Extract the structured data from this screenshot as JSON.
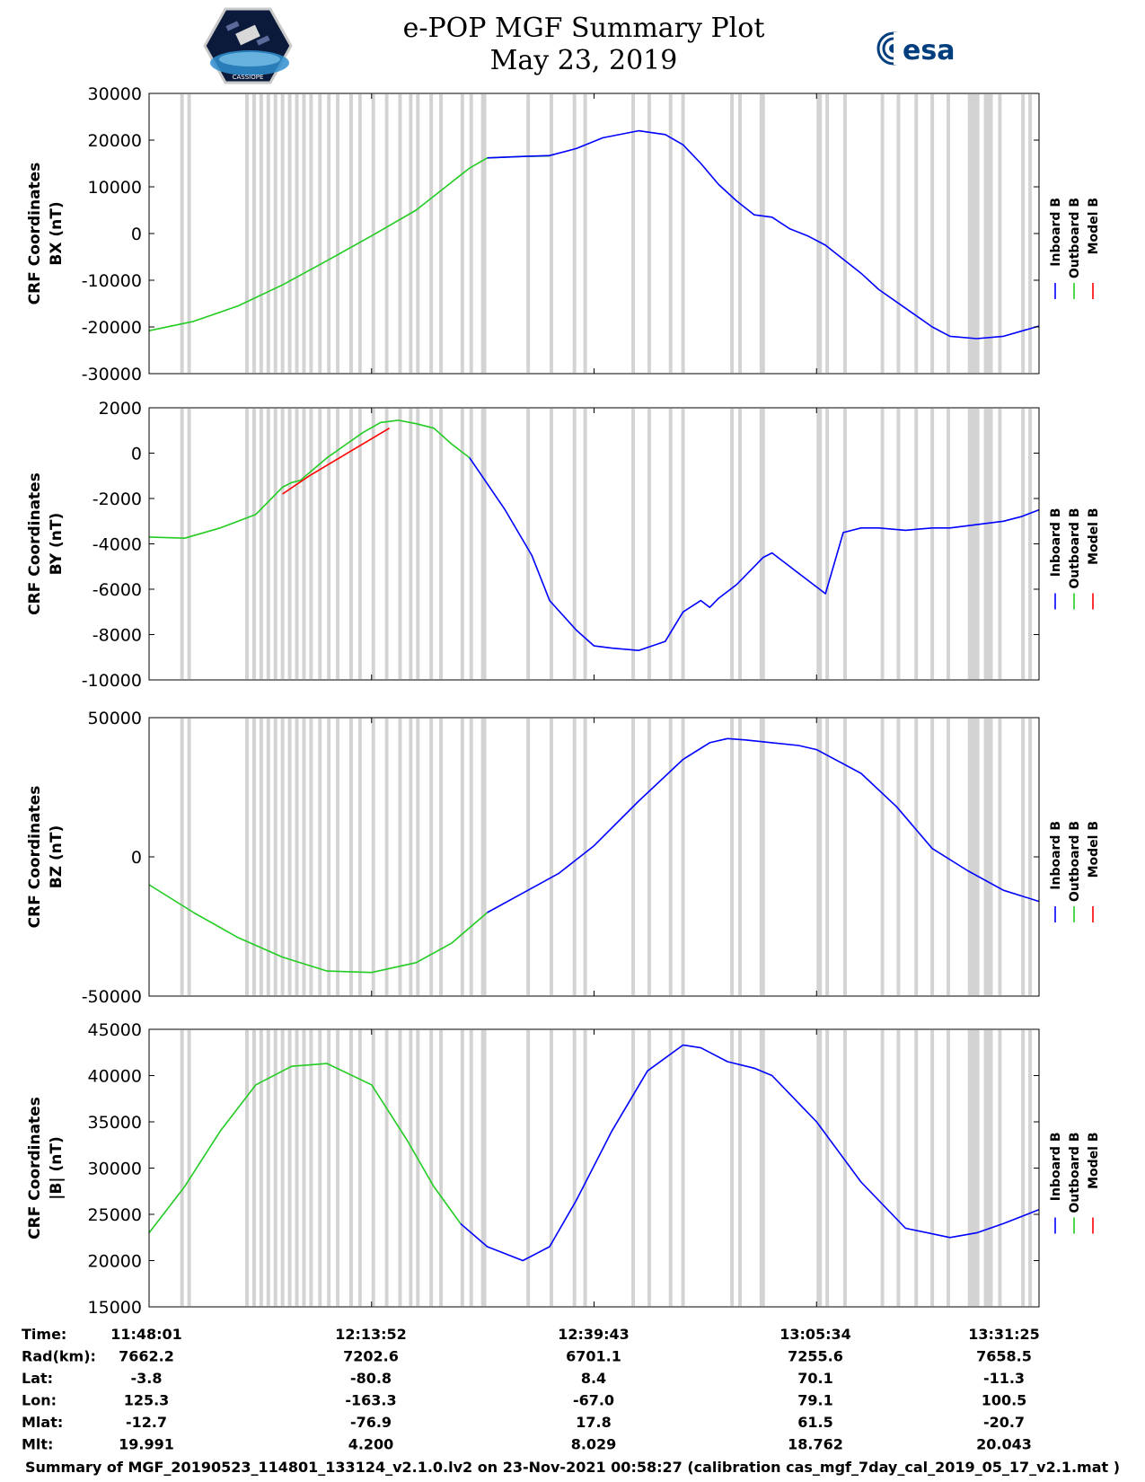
{
  "header": {
    "title_line1": "e-POP MGF Summary Plot",
    "title_line2": "May 23, 2019",
    "logo_left_label": "CASSIOPE",
    "logo_right_label": "esa"
  },
  "legend": {
    "labels": [
      "Inboard B",
      "Outboard B",
      "Model B"
    ],
    "colors": [
      "#0000ff",
      "#22cc22",
      "#ff0000"
    ]
  },
  "colors": {
    "inboard": "#0000ff",
    "outboard": "#22cc22",
    "model": "#ff0000",
    "gap": "#d3d3d3"
  },
  "chart_data": [
    {
      "type": "line",
      "ylabel_line1": "CRF Coordinates",
      "ylabel_line2": "BX (nT)",
      "ylim": [
        -30000,
        30000
      ],
      "yticks": [
        30000,
        20000,
        10000,
        0,
        -10000,
        -20000,
        -30000
      ],
      "xlim": [
        0,
        100
      ],
      "series": [
        {
          "name": "Outboard B",
          "color": "#22cc22",
          "x": [
            0,
            5,
            10,
            15,
            20,
            25,
            30,
            33,
            36,
            38
          ],
          "y": [
            -20800,
            -18800,
            -15500,
            -11000,
            -5800,
            -500,
            5000,
            9500,
            14000,
            16200
          ]
        },
        {
          "name": "Outboard B",
          "color": "#22cc22",
          "x": [
            38,
            42,
            45
          ],
          "y": [
            16200,
            16500,
            16600
          ]
        },
        {
          "name": "Inboard B",
          "color": "#0000ff",
          "x": [
            38,
            42,
            45,
            48,
            51,
            55,
            58,
            60,
            62,
            64,
            66,
            68,
            70,
            72,
            74,
            76,
            78,
            80,
            82,
            85,
            88,
            90,
            93,
            96,
            100
          ],
          "y": [
            16200,
            16500,
            16700,
            18200,
            20500,
            22000,
            21200,
            19000,
            15000,
            10500,
            7000,
            4000,
            3500,
            1000,
            -500,
            -2500,
            -5500,
            -8500,
            -12000,
            -16000,
            -20000,
            -22000,
            -22500,
            -22000,
            -19800
          ]
        }
      ]
    },
    {
      "type": "line",
      "ylabel_line1": "CRF Coordinates",
      "ylabel_line2": "BY (nT)",
      "ylim": [
        -10000,
        2000
      ],
      "yticks": [
        2000,
        0,
        -2000,
        -4000,
        -6000,
        -8000,
        -10000
      ],
      "xlim": [
        0,
        100
      ],
      "series": [
        {
          "name": "Outboard B",
          "color": "#22cc22",
          "x": [
            0,
            4,
            8,
            12,
            15,
            16,
            17,
            20,
            24,
            26,
            28,
            30,
            32,
            34,
            36
          ],
          "y": [
            -3700,
            -3750,
            -3300,
            -2700,
            -1500,
            -1300,
            -1200,
            -200,
            900,
            1350,
            1450,
            1300,
            1100,
            400,
            -200
          ]
        },
        {
          "name": "Model B",
          "color": "#ff0000",
          "x": [
            15,
            18,
            21,
            24,
            27
          ],
          "y": [
            -1800,
            -1000,
            -300,
            400,
            1100
          ]
        },
        {
          "name": "Inboard B",
          "color": "#0000ff",
          "x": [
            36,
            40,
            43,
            45,
            48,
            50,
            52,
            55,
            58,
            60,
            62,
            63,
            64,
            66,
            68,
            69,
            70,
            72,
            74,
            76,
            78,
            80,
            82,
            85,
            88,
            90,
            92,
            94,
            96,
            98,
            100
          ],
          "y": [
            -200,
            -2500,
            -4500,
            -6500,
            -7800,
            -8500,
            -8600,
            -8700,
            -8300,
            -7000,
            -6500,
            -6800,
            -6400,
            -5800,
            -5000,
            -4600,
            -4400,
            -5000,
            -5600,
            -6200,
            -3500,
            -3300,
            -3300,
            -3400,
            -3300,
            -3300,
            -3200,
            -3100,
            -3000,
            -2800,
            -2500
          ]
        }
      ]
    },
    {
      "type": "line",
      "ylabel_line1": "CRF Coordinates",
      "ylabel_line2": "BZ (nT)",
      "ylim": [
        -50000,
        50000
      ],
      "yticks": [
        50000,
        0,
        -50000
      ],
      "xlim": [
        0,
        100
      ],
      "series": [
        {
          "name": "Outboard B",
          "color": "#22cc22",
          "x": [
            0,
            5,
            10,
            15,
            20,
            25,
            30,
            34,
            38
          ],
          "y": [
            -10000,
            -20000,
            -29000,
            -36000,
            -41000,
            -41500,
            -38000,
            -31000,
            -20000
          ]
        },
        {
          "name": "Inboard B",
          "color": "#0000ff",
          "x": [
            38,
            42,
            46,
            50,
            55,
            60,
            63,
            65,
            67,
            70,
            73,
            75,
            80,
            84,
            88,
            92,
            96,
            100
          ],
          "y": [
            -20000,
            -13000,
            -6000,
            4000,
            20000,
            35000,
            41000,
            42500,
            42000,
            41000,
            40000,
            38500,
            30000,
            18000,
            3000,
            -5000,
            -12000,
            -16000
          ]
        }
      ]
    },
    {
      "type": "line",
      "ylabel_line1": "CRF Coordinates",
      "ylabel_line2": "|B| (nT)",
      "ylim": [
        15000,
        45000
      ],
      "yticks": [
        45000,
        40000,
        35000,
        30000,
        25000,
        20000,
        15000
      ],
      "xlim": [
        0,
        100
      ],
      "series": [
        {
          "name": "Outboard B",
          "color": "#22cc22",
          "x": [
            0,
            4,
            8,
            12,
            16,
            20,
            25,
            29,
            32,
            35
          ],
          "y": [
            23000,
            28000,
            34000,
            39000,
            41000,
            41300,
            39000,
            33000,
            28000,
            24000
          ]
        },
        {
          "name": "Inboard B",
          "color": "#0000ff",
          "x": [
            35,
            38,
            42,
            45,
            48,
            52,
            56,
            60,
            62,
            65,
            68,
            70,
            72,
            75,
            80,
            85,
            90,
            93,
            96,
            100
          ],
          "y": [
            24000,
            21500,
            20000,
            21500,
            26500,
            34000,
            40500,
            43300,
            43000,
            41500,
            40800,
            40000,
            38000,
            35000,
            28500,
            23500,
            22500,
            23000,
            24000,
            25500
          ]
        }
      ]
    }
  ],
  "gap_bands": [
    [
      3.5,
      3.9
    ],
    [
      4.3,
      4.7
    ],
    [
      10.8,
      11.2
    ],
    [
      11.6,
      12.0
    ],
    [
      12.4,
      12.8
    ],
    [
      13.2,
      13.6
    ],
    [
      14.0,
      14.4
    ],
    [
      14.8,
      15.2
    ],
    [
      15.6,
      16.0
    ],
    [
      16.4,
      16.8
    ],
    [
      17.2,
      17.6
    ],
    [
      18.0,
      18.4
    ],
    [
      19.0,
      19.4
    ],
    [
      20.0,
      20.4
    ],
    [
      21.0,
      21.4
    ],
    [
      22.5,
      22.9
    ],
    [
      23.5,
      23.9
    ],
    [
      25.0,
      25.4
    ],
    [
      26.5,
      26.9
    ],
    [
      28.0,
      28.4
    ],
    [
      29.2,
      29.6
    ],
    [
      30.0,
      30.4
    ],
    [
      31.5,
      31.9
    ],
    [
      32.6,
      33.0
    ],
    [
      35.0,
      35.4
    ],
    [
      36.0,
      36.4
    ],
    [
      37.3,
      37.9
    ],
    [
      42.4,
      42.8
    ],
    [
      45.0,
      45.4
    ],
    [
      47.6,
      48.0
    ],
    [
      48.8,
      49.2
    ],
    [
      54.2,
      54.6
    ],
    [
      56.0,
      56.4
    ],
    [
      58.4,
      58.8
    ],
    [
      59.8,
      60.2
    ],
    [
      65.3,
      65.7
    ],
    [
      66.2,
      66.6
    ],
    [
      68.6,
      69.2
    ],
    [
      75.0,
      75.6
    ],
    [
      76.0,
      76.4
    ],
    [
      78.0,
      78.4
    ],
    [
      82.2,
      82.6
    ],
    [
      84.0,
      84.4
    ],
    [
      86.0,
      86.4
    ],
    [
      87.8,
      88.2
    ],
    [
      89.6,
      90.0
    ],
    [
      92.0,
      93.3
    ],
    [
      93.8,
      94.8
    ],
    [
      95.4,
      95.8
    ],
    [
      98.0,
      98.4
    ],
    [
      98.8,
      99.2
    ]
  ],
  "x_axis_ticks": [
    0,
    25,
    50,
    75,
    100
  ],
  "ephemeris": {
    "row_labels": [
      "Time:",
      "Rad(km):",
      "Lat:",
      "Lon:",
      "Mlat:",
      "Mlt:"
    ],
    "columns": [
      [
        "11:48:01",
        "7662.2",
        "-3.8",
        "125.3",
        "-12.7",
        "19.991"
      ],
      [
        "12:13:52",
        "7202.6",
        "-80.8",
        "-163.3",
        "-76.9",
        "4.200"
      ],
      [
        "12:39:43",
        "6701.1",
        "8.4",
        "-67.0",
        "17.8",
        "8.029"
      ],
      [
        "13:05:34",
        "7255.6",
        "70.1",
        "79.1",
        "61.5",
        "18.762"
      ],
      [
        "13:31:25",
        "7658.5",
        "-11.3",
        "100.5",
        "-20.7",
        "20.043"
      ]
    ]
  },
  "footer": "Summary of MGF_20190523_114801_133124_v2.1.0.lv2 on 23-Nov-2021 00:58:27 (calibration cas_mgf_7day_cal_2019_05_17_v2.1.mat )"
}
